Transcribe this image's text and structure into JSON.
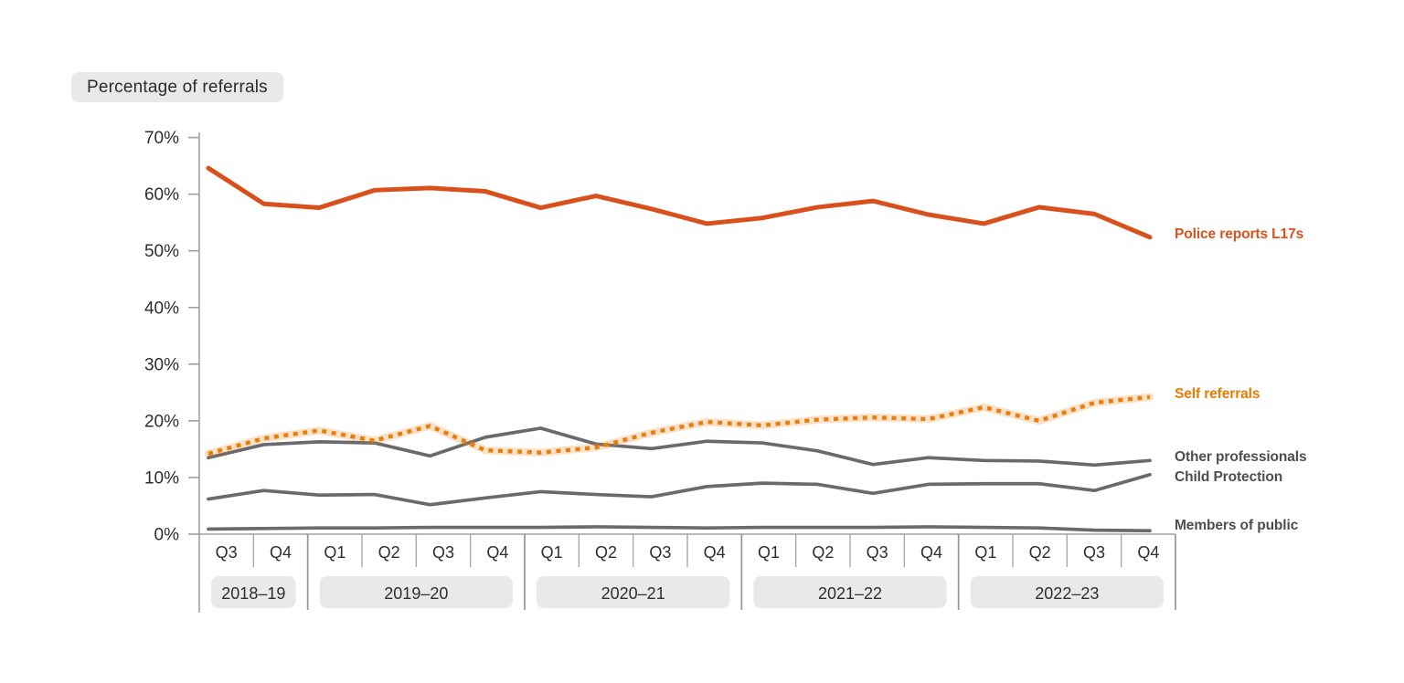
{
  "chart_data": {
    "type": "line",
    "title": "Percentage of referrals",
    "y_axis": {
      "min": 0,
      "max": 70,
      "step": 10,
      "suffix": "%"
    },
    "x_axis": {
      "groups": [
        {
          "label": "2018–19",
          "quarters": [
            "Q3",
            "Q4"
          ]
        },
        {
          "label": "2019–20",
          "quarters": [
            "Q1",
            "Q2",
            "Q3",
            "Q4"
          ]
        },
        {
          "label": "2020–21",
          "quarters": [
            "Q1",
            "Q2",
            "Q3",
            "Q4"
          ]
        },
        {
          "label": "2021–22",
          "quarters": [
            "Q1",
            "Q2",
            "Q3",
            "Q4"
          ]
        },
        {
          "label": "2022–23",
          "quarters": [
            "Q1",
            "Q2",
            "Q3",
            "Q4"
          ]
        }
      ]
    },
    "series": [
      {
        "name": "Police reports L17s",
        "color": "#d8511c",
        "label_color": "#d8511c",
        "line_style": "solid",
        "values": [
          64.6,
          58.3,
          57.6,
          60.7,
          61.1,
          60.5,
          57.6,
          59.7,
          57.4,
          54.8,
          55.8,
          57.7,
          58.8,
          56.4,
          54.8,
          57.7,
          56.5,
          52.4
        ]
      },
      {
        "name": "Self referrals",
        "color": "#e87e0e",
        "label_color": "#e87b00",
        "halo_color": "rgba(238,135,35,0.25)",
        "line_style": "dotted",
        "values": [
          14.2,
          16.9,
          18.3,
          16.5,
          19.1,
          14.8,
          14.4,
          15.3,
          17.9,
          19.8,
          19.2,
          20.2,
          20.6,
          20.3,
          22.4,
          20.0,
          23.2,
          24.2
        ]
      },
      {
        "name": "Other professionals",
        "color": "#6a6a6d",
        "label_color": "#4d4e50",
        "line_style": "solid",
        "values": [
          13.5,
          15.8,
          16.3,
          16.1,
          13.8,
          17.1,
          18.7,
          15.9,
          15.1,
          16.4,
          16.1,
          14.7,
          12.3,
          13.5,
          13.0,
          12.9,
          12.2,
          13.0
        ]
      },
      {
        "name": "Child Protection",
        "color": "#6a6a6d",
        "label_color": "#4d4e50",
        "line_style": "solid",
        "values": [
          6.2,
          7.7,
          6.9,
          7.0,
          5.2,
          6.4,
          7.5,
          7.0,
          6.6,
          8.4,
          9.0,
          8.8,
          7.2,
          8.8,
          8.9,
          8.9,
          7.7,
          10.5
        ]
      },
      {
        "name": "Members of public",
        "color": "#6a6a6d",
        "label_color": "#4d4e50",
        "line_style": "solid",
        "values": [
          0.9,
          1.0,
          1.1,
          1.1,
          1.2,
          1.2,
          1.2,
          1.3,
          1.2,
          1.1,
          1.2,
          1.2,
          1.2,
          1.3,
          1.2,
          1.1,
          0.7,
          0.6
        ]
      }
    ],
    "colors": {
      "axis": "#a0a0a0",
      "tick_text": "#2e2e2e",
      "chip_background": "#e9e9e9"
    }
  }
}
